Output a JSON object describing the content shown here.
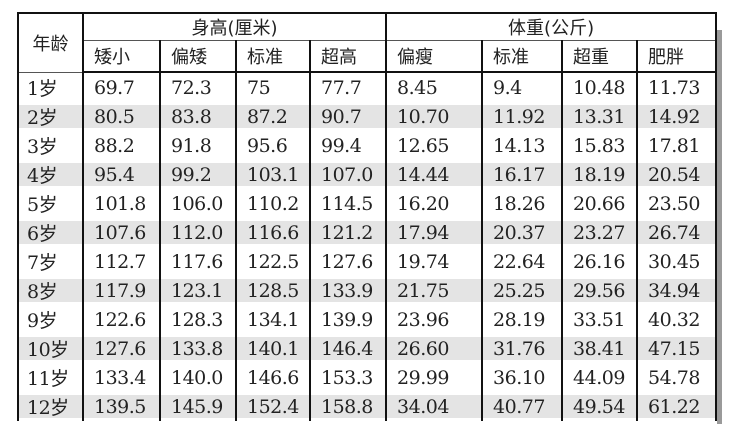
{
  "table": {
    "age_header": "年龄",
    "groups": [
      "身高(厘米)",
      "体重(公斤)"
    ],
    "columns": [
      "矮小",
      "偏矮",
      "标准",
      "超高",
      "偏瘦",
      "标准",
      "超重",
      "肥胖"
    ],
    "rows": [
      {
        "age": "1岁",
        "values": [
          "69.7",
          "72.3",
          "75",
          "77.7",
          "8.45",
          "9.4",
          "10.48",
          "11.73"
        ]
      },
      {
        "age": "2岁",
        "values": [
          "80.5",
          "83.8",
          "87.2",
          "90.7",
          "10.70",
          "11.92",
          "13.31",
          "14.92"
        ]
      },
      {
        "age": "3岁",
        "values": [
          "88.2",
          "91.8",
          "95.6",
          "99.4",
          "12.65",
          "14.13",
          "15.83",
          "17.81"
        ]
      },
      {
        "age": "4岁",
        "values": [
          "95.4",
          "99.2",
          "103.1",
          "107.0",
          "14.44",
          "16.17",
          "18.19",
          "20.54"
        ]
      },
      {
        "age": "5岁",
        "values": [
          "101.8",
          "106.0",
          "110.2",
          "114.5",
          "16.20",
          "18.26",
          "20.66",
          "23.50"
        ]
      },
      {
        "age": "6岁",
        "values": [
          "107.6",
          "112.0",
          "116.6",
          "121.2",
          "17.94",
          "20.37",
          "23.27",
          "26.74"
        ]
      },
      {
        "age": "7岁",
        "values": [
          "112.7",
          "117.6",
          "122.5",
          "127.6",
          "19.74",
          "22.64",
          "26.16",
          "30.45"
        ]
      },
      {
        "age": "8岁",
        "values": [
          "117.9",
          "123.1",
          "128.5",
          "133.9",
          "21.75",
          "25.25",
          "29.56",
          "34.94"
        ]
      },
      {
        "age": "9岁",
        "values": [
          "122.6",
          "128.3",
          "134.1",
          "139.9",
          "23.96",
          "28.19",
          "33.51",
          "40.32"
        ]
      },
      {
        "age": "10岁",
        "values": [
          "127.6",
          "133.8",
          "140.1",
          "146.4",
          "26.60",
          "31.76",
          "38.41",
          "47.15"
        ]
      },
      {
        "age": "11岁",
        "values": [
          "133.4",
          "140.0",
          "146.6",
          "153.3",
          "29.99",
          "36.10",
          "44.09",
          "54.78"
        ]
      },
      {
        "age": "12岁",
        "values": [
          "139.5",
          "145.9",
          "152.4",
          "158.8",
          "34.04",
          "40.77",
          "49.54",
          "61.22"
        ]
      }
    ]
  }
}
